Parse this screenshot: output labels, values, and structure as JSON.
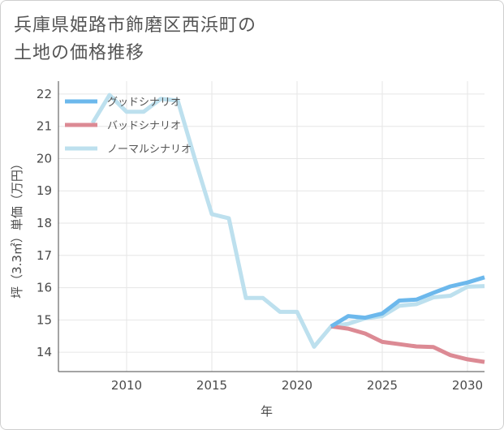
{
  "title_lines": [
    "兵庫県姫路市飾磨区西浜町の",
    "土地の価格推移"
  ],
  "colors": {
    "good": "#6cb8ec",
    "bad": "#dc8a94",
    "normal": "#bde0ee"
  },
  "chart_data": {
    "type": "line",
    "title": "兵庫県姫路市飾磨区西浜町の土地の価格推移",
    "xlabel": "年",
    "ylabel": "坪（3.3㎡）単価（万円）",
    "xlim": [
      2006,
      2031
    ],
    "ylim": [
      13.4,
      22.4
    ],
    "xticks": [
      2010,
      2015,
      2020,
      2025,
      2030
    ],
    "yticks": [
      14,
      15,
      16,
      17,
      18,
      19,
      20,
      21,
      22
    ],
    "legend_position": "top-left",
    "series": [
      {
        "name": "グッドシナリオ",
        "color_key": "good",
        "x": [
          2022,
          2023,
          2024,
          2025,
          2026,
          2027,
          2028,
          2029,
          2030,
          2031
        ],
        "y": [
          14.8,
          15.12,
          15.07,
          15.2,
          15.6,
          15.63,
          15.84,
          16.04,
          16.16,
          16.32
        ]
      },
      {
        "name": "バッドシナリオ",
        "color_key": "bad",
        "x": [
          2022,
          2023,
          2024,
          2025,
          2026,
          2027,
          2028,
          2029,
          2030,
          2031
        ],
        "y": [
          14.8,
          14.73,
          14.58,
          14.32,
          14.25,
          14.18,
          14.16,
          13.91,
          13.78,
          13.7
        ]
      },
      {
        "name": "ノーマルシナリオ",
        "color_key": "normal",
        "x": [
          2008,
          2009,
          2010,
          2011,
          2012,
          2013,
          2014,
          2015,
          2016,
          2017,
          2018,
          2019,
          2020,
          2021,
          2022,
          2023,
          2024,
          2025,
          2026,
          2027,
          2028,
          2029,
          2030,
          2031
        ],
        "y": [
          21.1,
          21.97,
          21.45,
          21.45,
          21.85,
          21.8,
          20.0,
          18.28,
          18.15,
          15.68,
          15.68,
          15.25,
          15.25,
          14.17,
          14.8,
          14.88,
          15.05,
          15.12,
          15.44,
          15.49,
          15.7,
          15.75,
          16.03,
          16.05
        ]
      }
    ]
  }
}
